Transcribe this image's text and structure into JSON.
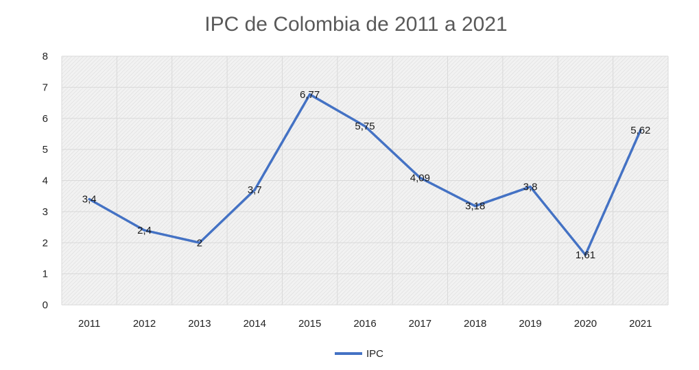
{
  "chart_data": {
    "type": "line",
    "title": "IPC de Colombia de 2011 a 2021",
    "xlabel": "",
    "ylabel": "",
    "categories": [
      "2011",
      "2012",
      "2013",
      "2014",
      "2015",
      "2016",
      "2017",
      "2018",
      "2019",
      "2020",
      "2021"
    ],
    "series": [
      {
        "name": "IPC",
        "values": [
          3.4,
          2.4,
          2,
          3.7,
          6.77,
          5.75,
          4.09,
          3.18,
          3.8,
          1.61,
          5.62
        ],
        "labels": [
          "3,4",
          "2,4",
          "2",
          "3,7",
          "6,77",
          "5,75",
          "4,09",
          "3,18",
          "3,8",
          "1,61",
          "5,62"
        ],
        "color": "#4472C4"
      }
    ],
    "ylim": [
      0,
      8
    ],
    "yticks": [
      "0",
      "1",
      "2",
      "3",
      "4",
      "5",
      "6",
      "7",
      "8"
    ],
    "grid": true,
    "legend_position": "bottom"
  }
}
